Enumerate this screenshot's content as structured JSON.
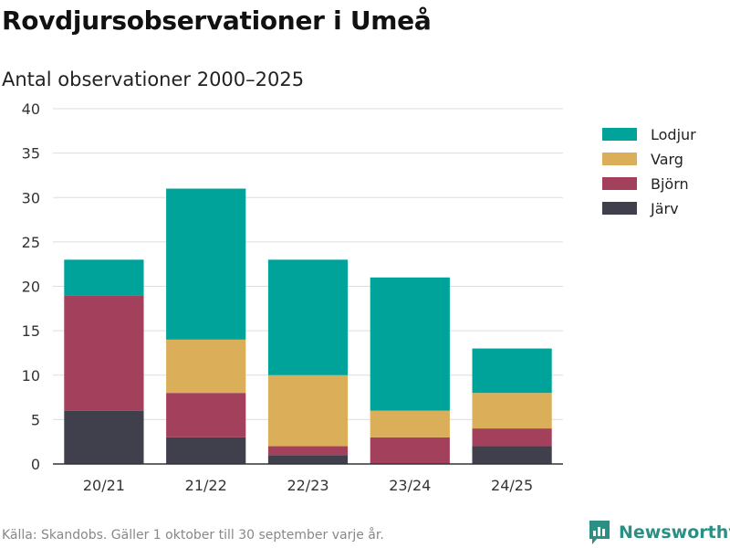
{
  "header": {
    "title": "Rovdjursobservationer i Umeå",
    "subtitle": "Antal observationer 2000–2025"
  },
  "footer": {
    "source": "Källa: Skandobs. Gäller 1 oktober till 30 september varje år.",
    "brand": "Newsworthy",
    "brand_icon": "newsworthy-logo-icon",
    "brand_color": "#2b8f83"
  },
  "chart_data": {
    "type": "bar",
    "stacked": true,
    "title": "Rovdjursobservationer i Umeå",
    "subtitle": "Antal observationer 2000–2025",
    "xlabel": "",
    "ylabel": "",
    "categories": [
      "20/21",
      "21/22",
      "22/23",
      "23/24",
      "24/25"
    ],
    "ylim": [
      0,
      40
    ],
    "yticks": [
      0,
      5,
      10,
      15,
      20,
      25,
      30,
      35,
      40
    ],
    "grid": true,
    "legend_position": "right",
    "series": [
      {
        "name": "Järv",
        "color": "#403f4c",
        "values": [
          6,
          3,
          1,
          0,
          2
        ]
      },
      {
        "name": "Björn",
        "color": "#a3405c",
        "values": [
          13,
          5,
          1,
          3,
          2
        ]
      },
      {
        "name": "Varg",
        "color": "#dbae5a",
        "values": [
          0,
          6,
          8,
          3,
          4
        ]
      },
      {
        "name": "Lodjur",
        "color": "#00a39a",
        "values": [
          4,
          17,
          13,
          15,
          5
        ]
      }
    ],
    "legend_order": [
      "Lodjur",
      "Varg",
      "Björn",
      "Järv"
    ]
  }
}
